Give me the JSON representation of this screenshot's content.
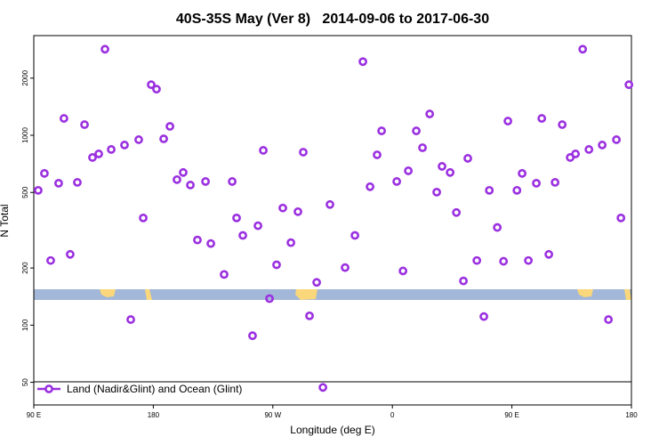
{
  "chart_data": {
    "type": "scatter",
    "title": "40S-35S May (Ver 8)   2014-09-06 to 2017-06-30",
    "xlabel": "Longitude (deg E)",
    "ylabel": "N Total",
    "log_y": true,
    "legend": "lower left",
    "xlim": [
      90,
      540
    ],
    "ylim": [
      38,
      3350
    ],
    "xticks": [
      {
        "value": 90,
        "label": "90 E"
      },
      180,
      {
        "value": 270,
        "label": "90 W"
      },
      {
        "value": 360,
        "label": "0"
      },
      {
        "value": 450,
        "label": "90 E"
      },
      {
        "value": 540,
        "label": "180"
      }
    ],
    "yticks": [
      50,
      100,
      200,
      500,
      1000,
      2000
    ],
    "series": [
      {
        "name": "Land (Nadir&Glint) and Ocean (Glint)",
        "color": "#9b30e0",
        "x": [
          93.3,
          98,
          102.7,
          108.7,
          112.7,
          117.4,
          122.8,
          128.2,
          134.2,
          138.9,
          143.6,
          148.3,
          158.3,
          163,
          169,
          172.4,
          178.4,
          182.4,
          187.8,
          192.5,
          197.8,
          202.5,
          207.9,
          213.2,
          219.3,
          223.3,
          233.3,
          239.4,
          242.7,
          247.4,
          254.7,
          258.8,
          262.8,
          267.5,
          272.8,
          277.5,
          283.6,
          288.9,
          292.9,
          297.6,
          303,
          307.7,
          313,
          324.4,
          331.8,
          337.8,
          343.2,
          348.5,
          351.9,
          363.3,
          368,
          372,
          378,
          382.7,
          388.1,
          393.4,
          397.4,
          403.5,
          408.2,
          413.5,
          416.8,
          423.6,
          428.9,
          433,
          439,
          443.7,
          447,
          453.8,
          457.7,
          462.4,
          468.4,
          472.5,
          477.8,
          482.5,
          487.9,
          493.9,
          497.9,
          503.3,
          508,
          518,
          522.7,
          528.7,
          532.1,
          538.1
        ],
        "values": [
          513,
          630,
          219,
          559,
          1227,
          236,
          565,
          1138,
          764,
          798,
          2840,
          842,
          889,
          107,
          948,
          367,
          1847,
          1750,
          958,
          1114,
          584,
          637,
          547,
          281,
          571,
          269,
          185,
          571,
          367,
          297,
          88,
          334,
          833,
          138,
          208,
          414,
          272,
          396,
          815,
          112,
          168,
          47,
          432,
          201,
          297,
          2443,
          536,
          789,
          1055,
          571,
          193,
          650,
          1055,
          860,
          1295,
          502,
          686,
          637,
          392,
          171,
          756,
          219,
          111,
          513,
          327,
          217,
          1188,
          513,
          630,
          219,
          559,
          1227,
          236,
          565,
          1138,
          764,
          798,
          2840,
          842,
          889,
          107,
          948,
          367,
          1847
        ]
      }
    ]
  }
}
